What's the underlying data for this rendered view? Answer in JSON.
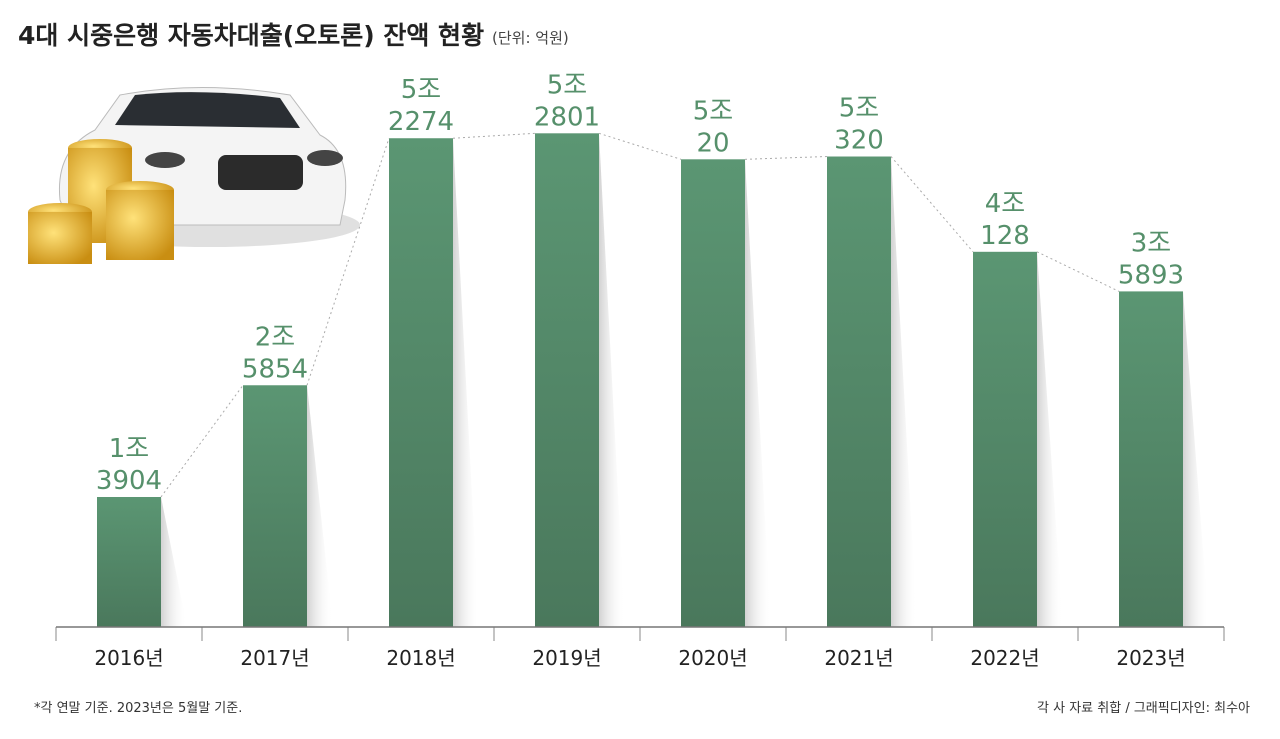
{
  "chart_data": {
    "type": "bar",
    "title": "4대 시중은행 자동차대출(오토론) 잔액 현황",
    "subtitle": "(단위: 억원)",
    "categories": [
      "2016년",
      "2017년",
      "2018년",
      "2019년",
      "2020년",
      "2021년",
      "2022년",
      "2023년"
    ],
    "values": [
      13904,
      25854,
      52274,
      52801,
      50020,
      50320,
      40128,
      35893
    ],
    "value_labels": [
      [
        "1조",
        "3904"
      ],
      [
        "2조",
        "5854"
      ],
      [
        "5조",
        "2274"
      ],
      [
        "5조",
        "2801"
      ],
      [
        "5조",
        "20"
      ],
      [
        "5조",
        "320"
      ],
      [
        "4조",
        "128"
      ],
      [
        "3조",
        "5893"
      ]
    ],
    "color": "#56906b",
    "ylim": [
      0,
      60000
    ],
    "note": "*각 연말 기준. 2023년은 5월말 기준.",
    "source": "각 사 자료 취합 / 그래픽디자인: 최수아"
  }
}
